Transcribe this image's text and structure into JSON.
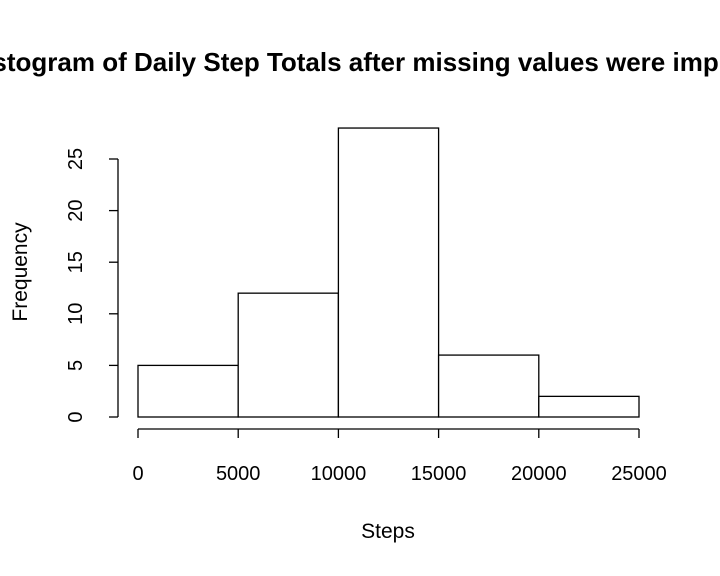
{
  "chart_data": {
    "type": "bar",
    "title": "Histogram of Daily Step Totals after missing values were imputed",
    "xlabel": "Steps",
    "ylabel": "Frequency",
    "bins": [
      {
        "start": 0,
        "end": 5000,
        "value": 5
      },
      {
        "start": 5000,
        "end": 10000,
        "value": 12
      },
      {
        "start": 10000,
        "end": 15000,
        "value": 28
      },
      {
        "start": 15000,
        "end": 20000,
        "value": 6
      },
      {
        "start": 20000,
        "end": 25000,
        "value": 2
      }
    ],
    "xlim": [
      0,
      25000
    ],
    "ylim": [
      0,
      28
    ],
    "x_ticks": [
      0,
      5000,
      10000,
      15000,
      20000,
      25000
    ],
    "x_tick_labels": [
      "0",
      "5000",
      "10000",
      "15000",
      "20000",
      "25000"
    ],
    "y_ticks": [
      0,
      5,
      10,
      15,
      20,
      25
    ],
    "y_tick_labels": [
      "0",
      "5",
      "10",
      "15",
      "20",
      "25"
    ],
    "grid": false,
    "colors": {
      "bar_fill": "#ffffff",
      "bar_stroke": "#000000"
    }
  }
}
